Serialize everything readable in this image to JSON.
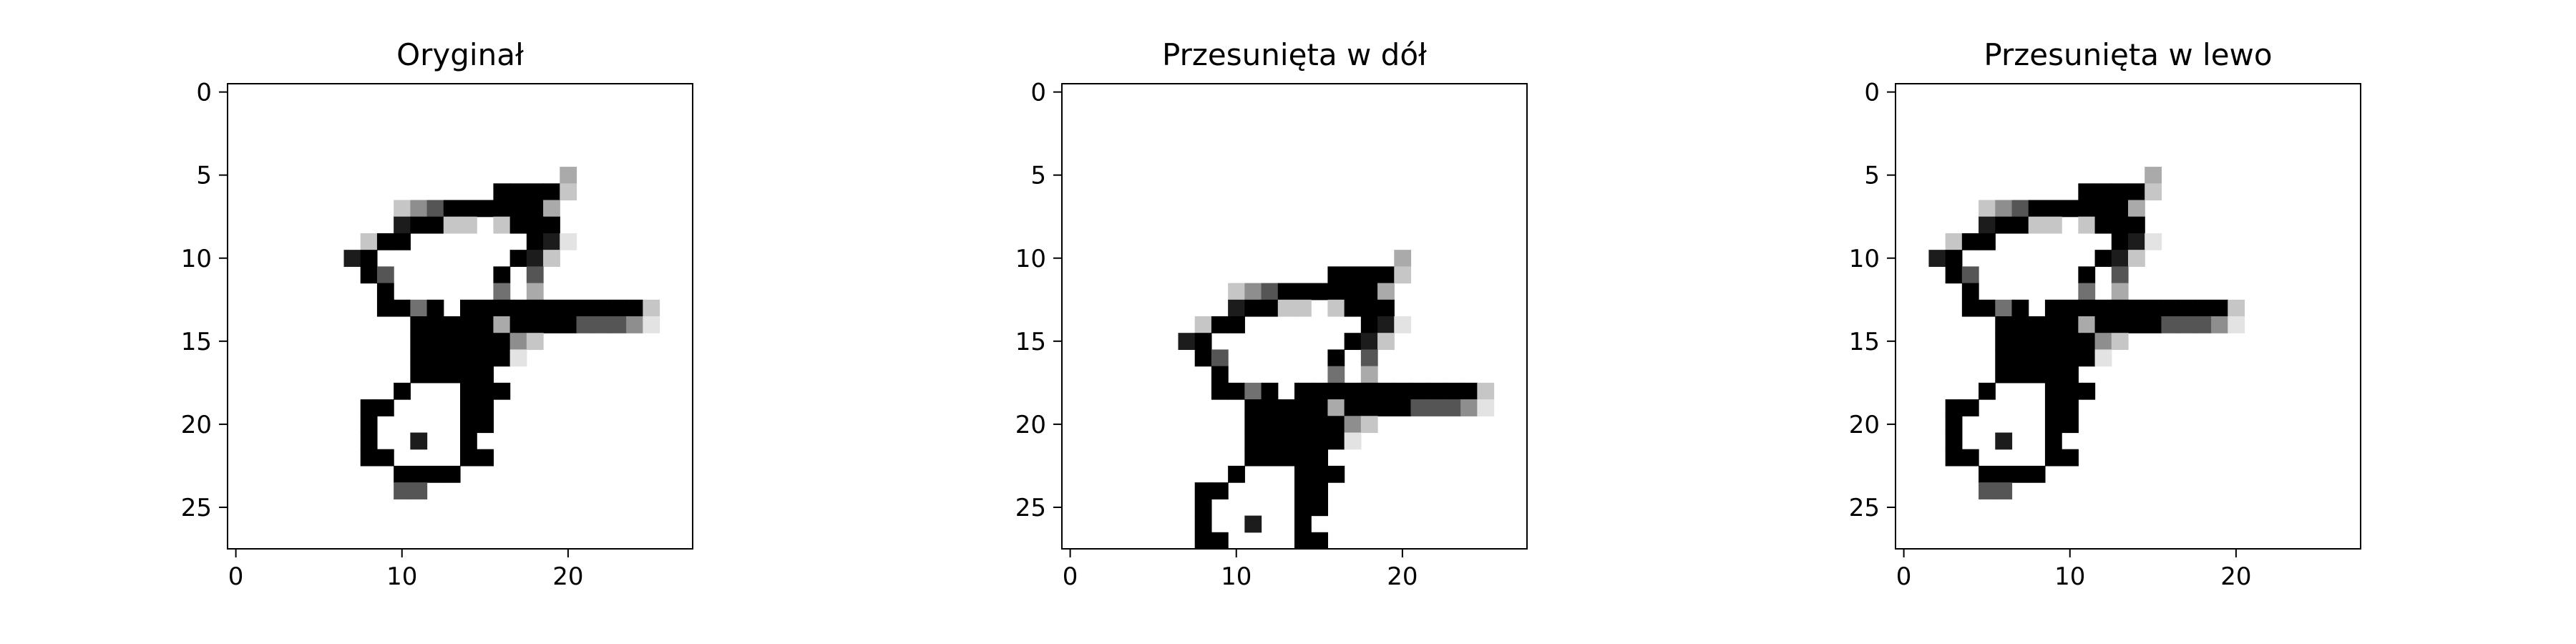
{
  "chart_data": [
    {
      "type": "heatmap",
      "title": "Oryginał",
      "xlabel": "",
      "ylabel": "",
      "xlim": [
        -0.5,
        27.5
      ],
      "ylim": [
        27.5,
        -0.5
      ],
      "xticks": [
        0,
        10,
        20
      ],
      "yticks": [
        0,
        5,
        10,
        15,
        20,
        25
      ],
      "colormap": "binary",
      "grid": false,
      "shift_down": 0,
      "shift_left": 0
    },
    {
      "type": "heatmap",
      "title": "Przesunięta w dół",
      "xlabel": "",
      "ylabel": "",
      "xlim": [
        -0.5,
        27.5
      ],
      "ylim": [
        27.5,
        -0.5
      ],
      "xticks": [
        0,
        10,
        20
      ],
      "yticks": [
        0,
        5,
        10,
        15,
        20,
        25
      ],
      "colormap": "binary",
      "grid": false,
      "shift_down": 5,
      "shift_left": 0
    },
    {
      "type": "heatmap",
      "title": "Przesunięta w lewo",
      "xlabel": "",
      "ylabel": "",
      "xlim": [
        -0.5,
        27.5
      ],
      "ylim": [
        27.5,
        -0.5
      ],
      "xticks": [
        0,
        10,
        20
      ],
      "yticks": [
        0,
        5,
        10,
        15,
        20,
        25
      ],
      "colormap": "binary",
      "grid": false,
      "shift_down": 0,
      "shift_left": 5
    }
  ],
  "digit_image": {
    "rows": 28,
    "cols": 28,
    "value_scale": 9,
    "pixels": [
      "............................",
      "............................",
      "............................",
      "............................",
      "............................",
      "....................3.......",
      "................99992.......",
      "..........2469999993........",
      "..........89922.2999........",
      "........299.......981.......",
      ".......89........982........",
      "........96......9.6.........",
      ".........9......5.3.........",
      ".........9959.999999999992..",
      "...........999993999966641..",
      "...........99999942.........",
      "...........9999991..........",
      "...........99999............",
      "..........9...999...........",
      "........99....99............",
      "........9.....99............",
      "........9..8..9.............",
      "........99....99............",
      "..........9999..............",
      "..........66................",
      "............................",
      "............................",
      "............................"
    ]
  }
}
